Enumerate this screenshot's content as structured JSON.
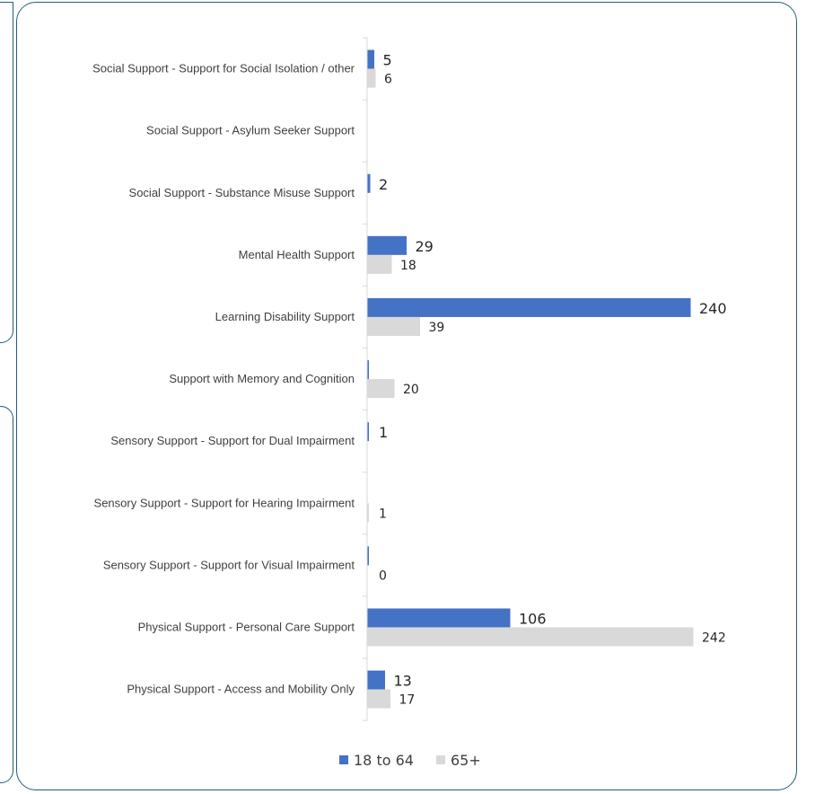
{
  "chart_data": {
    "type": "bar",
    "orientation": "horizontal",
    "categories": [
      "Social Support - Support for Social Isolation / other",
      "Social Support - Asylum Seeker Support",
      "Social Support - Substance Misuse Support",
      "Mental Health Support",
      "Learning Disability Support",
      "Support with Memory and Cognition",
      "Sensory Support - Support for Dual Impairment",
      "Sensory Support - Support for Hearing Impairment",
      "Sensory Support - Support for Visual Impairment",
      "Physical Support - Personal Care Support",
      "Physical Support - Access and Mobility Only"
    ],
    "series": [
      {
        "name": "18 to 64",
        "color": "#4472c4",
        "values": [
          5,
          0,
          2,
          29,
          240,
          1,
          1,
          0,
          1,
          106,
          13
        ],
        "labels": [
          "5",
          "",
          "2",
          "29",
          "240",
          "",
          "1",
          "",
          "",
          "106",
          "13"
        ]
      },
      {
        "name": "65+",
        "color": "#d9d9d9",
        "values": [
          6,
          0,
          0,
          18,
          39,
          20,
          0,
          1,
          0,
          242,
          17
        ],
        "labels": [
          "6",
          "",
          "",
          "18",
          "39",
          "20",
          "",
          "1",
          "0",
          "242",
          "17"
        ]
      }
    ],
    "xlim": [
      0,
      260
    ],
    "grid": false,
    "legend": "bottom"
  }
}
